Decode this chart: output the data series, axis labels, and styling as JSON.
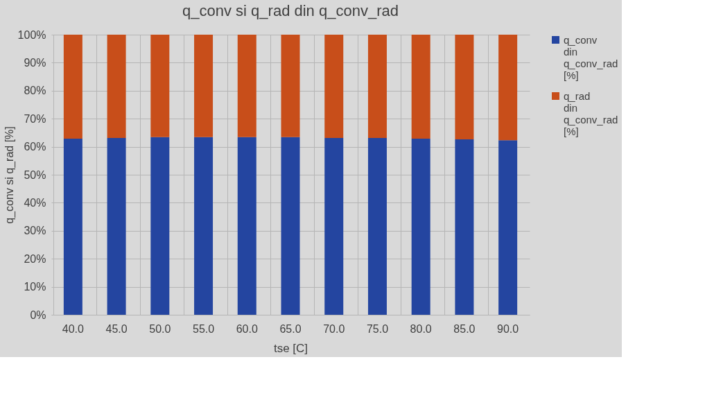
{
  "chart_data": {
    "type": "bar",
    "title": "q_conv si q_rad din q_conv_rad",
    "xlabel": "tse [C]",
    "ylabel": "q_conv si q_rad [%]",
    "categories": [
      "40.0",
      "45.0",
      "50.0",
      "55.0",
      "60.0",
      "65.0",
      "70.0",
      "75.0",
      "80.0",
      "85.0",
      "90.0"
    ],
    "stacked": true,
    "series": [
      {
        "name": "q_conv din q_conv_rad [%]",
        "color": "#2445a0",
        "values": [
          62.9,
          63.1,
          63.4,
          63.4,
          63.4,
          63.4,
          63.1,
          63.1,
          62.9,
          62.6,
          62.3
        ]
      },
      {
        "name": "q_rad din q_conv_rad [%]",
        "color": "#c84e1a",
        "values": [
          37.1,
          36.9,
          36.6,
          36.6,
          36.6,
          36.6,
          36.9,
          36.9,
          37.1,
          37.4,
          37.7
        ]
      }
    ],
    "ylim": [
      0,
      100
    ],
    "yticks": [
      {
        "value": 0,
        "label": "0%"
      },
      {
        "value": 10,
        "label": "10%"
      },
      {
        "value": 20,
        "label": "20%"
      },
      {
        "value": 30,
        "label": "30%"
      },
      {
        "value": 40,
        "label": "40%"
      },
      {
        "value": 50,
        "label": "50%"
      },
      {
        "value": 60,
        "label": "60%"
      },
      {
        "value": 70,
        "label": "70%"
      },
      {
        "value": 80,
        "label": "80%"
      },
      {
        "value": 90,
        "label": "90%"
      },
      {
        "value": 100,
        "label": "100%"
      }
    ],
    "grid": true,
    "legend": "right"
  }
}
